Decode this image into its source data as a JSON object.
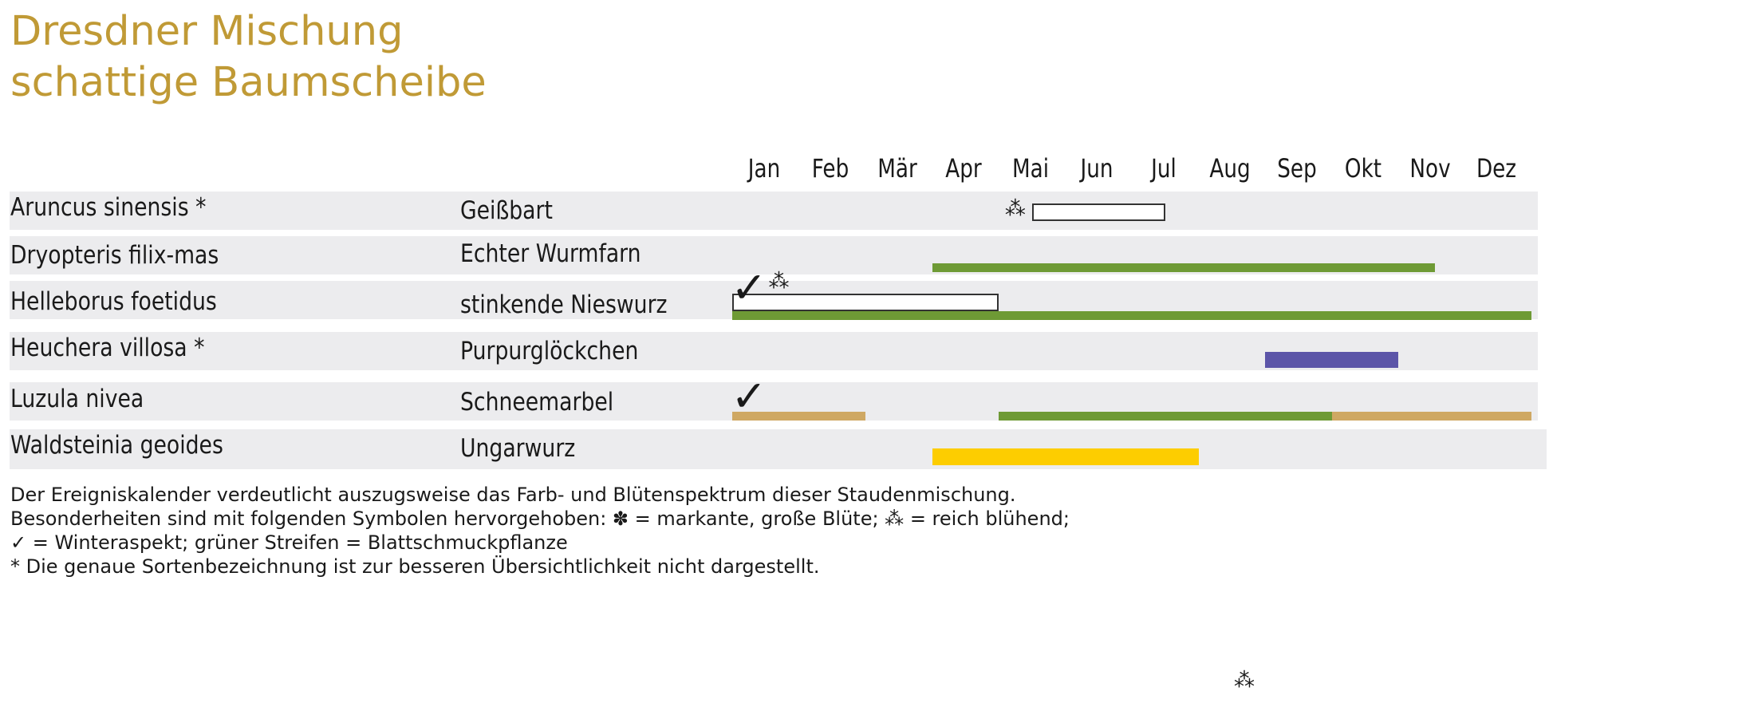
{
  "title": {
    "line1": "Dresdner Mischung",
    "line2": "schattige Baumscheibe"
  },
  "colors": {
    "title": "#c09a36",
    "row_bg": "#ececee",
    "foliage_green": "#6e9a35",
    "winter_tan": "#cfa863",
    "flower_purple": "#5c55a8",
    "flower_yellow": "#fdcd00",
    "flower_white": "#ffffff"
  },
  "chart_data": {
    "type": "gantt",
    "title": "Dresdner Mischung schattige Baumscheibe",
    "months": [
      "Jan",
      "Feb",
      "Mär",
      "Apr",
      "Mai",
      "Jun",
      "Jul",
      "Aug",
      "Sep",
      "Okt",
      "Nov",
      "Dez"
    ],
    "rows": [
      {
        "latin": "Aruncus sinensis *",
        "german": "Geißbart",
        "bars": [
          {
            "kind": "flower",
            "color": "#ffffff",
            "start": 5.5,
            "end": 7.5
          }
        ],
        "symbols": [
          {
            "type": "reich blühend",
            "glyph": "⁂",
            "month": 5.25
          }
        ]
      },
      {
        "latin": "Dryopteris filix-mas",
        "german": "Echter Wurmfarn",
        "bars": [
          {
            "kind": "foliage",
            "color": "#6e9a35",
            "start": 4.0,
            "end": 11.55
          }
        ],
        "symbols": []
      },
      {
        "latin": "Helleborus foetidus",
        "german": "stinkende Nieswurz",
        "bars": [
          {
            "kind": "flower",
            "color": "#ffffff",
            "start": 1.0,
            "end": 5.0
          },
          {
            "kind": "foliage",
            "color": "#6e9a35",
            "start": 1.0,
            "end": 13.0
          }
        ],
        "symbols": [
          {
            "type": "Winteraspekt",
            "glyph": "✓",
            "month": 1.1
          },
          {
            "type": "reich blühend",
            "glyph": "⁂",
            "month": 1.7
          }
        ]
      },
      {
        "latin": "Heuchera villosa *",
        "german": "Purpurglöckchen",
        "bars": [
          {
            "kind": "flower",
            "color": "#5c55a8",
            "start": 9.0,
            "end": 11.0
          }
        ],
        "symbols": []
      },
      {
        "latin": "Luzula nivea",
        "german": "Schneemarbel",
        "bars": [
          {
            "kind": "winter",
            "color": "#cfa863",
            "start": 1.0,
            "end": 3.0
          },
          {
            "kind": "foliage",
            "color": "#6e9a35",
            "start": 5.0,
            "end": 10.0
          },
          {
            "kind": "winter",
            "color": "#cfa863",
            "start": 10.0,
            "end": 13.0
          }
        ],
        "symbols": [
          {
            "type": "Winteraspekt",
            "glyph": "✓",
            "month": 1.1
          }
        ]
      },
      {
        "latin": "Waldsteinia geoides",
        "german": "Ungarwurz",
        "bars": [
          {
            "kind": "flower",
            "color": "#fdcd00",
            "start": 4.0,
            "end": 8.0
          }
        ],
        "symbols": []
      }
    ]
  },
  "legend": {
    "line1": "Der Ereigniskalender verdeutlicht auszugsweise das Farb- und Blütenspektrum dieser Staudenmischung.",
    "line2": "Besonderheiten sind mit folgenden Symbolen hervorgehoben: ✽ = markante, große Blüte; ⁂ = reich blühend;",
    "line3": "✓ = Winteraspekt; grüner Streifen = Blattschmuckpflanze",
    "line4": "* Die genaue Sortenbezeichnung ist zur besseren Übersichtlichkeit nicht dargestellt."
  },
  "stray_symbol": "⁂"
}
